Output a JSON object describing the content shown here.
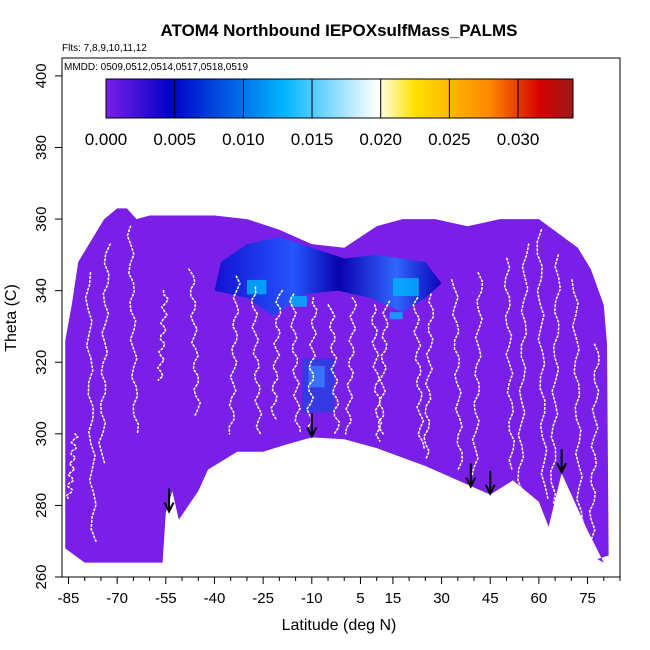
{
  "chart_data": {
    "type": "heatmap",
    "title": "ATOM4 Northbound IEPOXsulfMass_PALMS",
    "flights_note": "Flts: 7,8,9,10,11,12",
    "dates_note": "MMDD: 0509,0512,0514,0517,0518,0519",
    "xlabel": "Latitude (deg N)",
    "ylabel": "Theta (C)",
    "xlim": [
      -87,
      85
    ],
    "ylim": [
      260,
      405
    ],
    "x_ticks": [
      -85,
      -70,
      -55,
      -40,
      -25,
      -10,
      5,
      15,
      30,
      45,
      60,
      75
    ],
    "y_ticks": [
      260,
      280,
      300,
      320,
      340,
      360,
      380,
      400
    ],
    "colorbar": {
      "ticks": [
        "0.000",
        "0.005",
        "0.010",
        "0.015",
        "0.020",
        "0.025",
        "0.030"
      ],
      "range": [
        0,
        0.034
      ],
      "colors": [
        "#7a1fe8",
        "#0000c8",
        "#00b4ff",
        "#ffffff",
        "#ffe200",
        "#ff8a00",
        "#d40000",
        "#9c1a1a"
      ]
    },
    "background_value": 0.0,
    "enhanced_region": {
      "lat_range": [
        -40,
        25
      ],
      "theta_range": [
        325,
        350
      ],
      "peak_value": 0.014
    },
    "minor_patch": {
      "lat_range": [
        -13,
        -3
      ],
      "theta_range": [
        306,
        321
      ],
      "peak_value": 0.008
    },
    "arrows_lat": [
      -54,
      -10,
      39,
      45,
      67
    ],
    "surface_theta": [
      [
        -55,
        278
      ],
      [
        -53,
        284
      ],
      [
        -51,
        276
      ],
      [
        -45,
        284
      ],
      [
        -42,
        290
      ],
      [
        -33,
        295
      ],
      [
        -25,
        295
      ],
      [
        -18,
        297
      ],
      [
        -10,
        299
      ],
      [
        0,
        298.5
      ],
      [
        10,
        296
      ],
      [
        25,
        291
      ],
      [
        40,
        285
      ],
      [
        45,
        283
      ],
      [
        52,
        287
      ],
      [
        60,
        281
      ],
      [
        63,
        274
      ],
      [
        67,
        289
      ],
      [
        70,
        283
      ],
      [
        75,
        273
      ],
      [
        80,
        264
      ]
    ]
  }
}
